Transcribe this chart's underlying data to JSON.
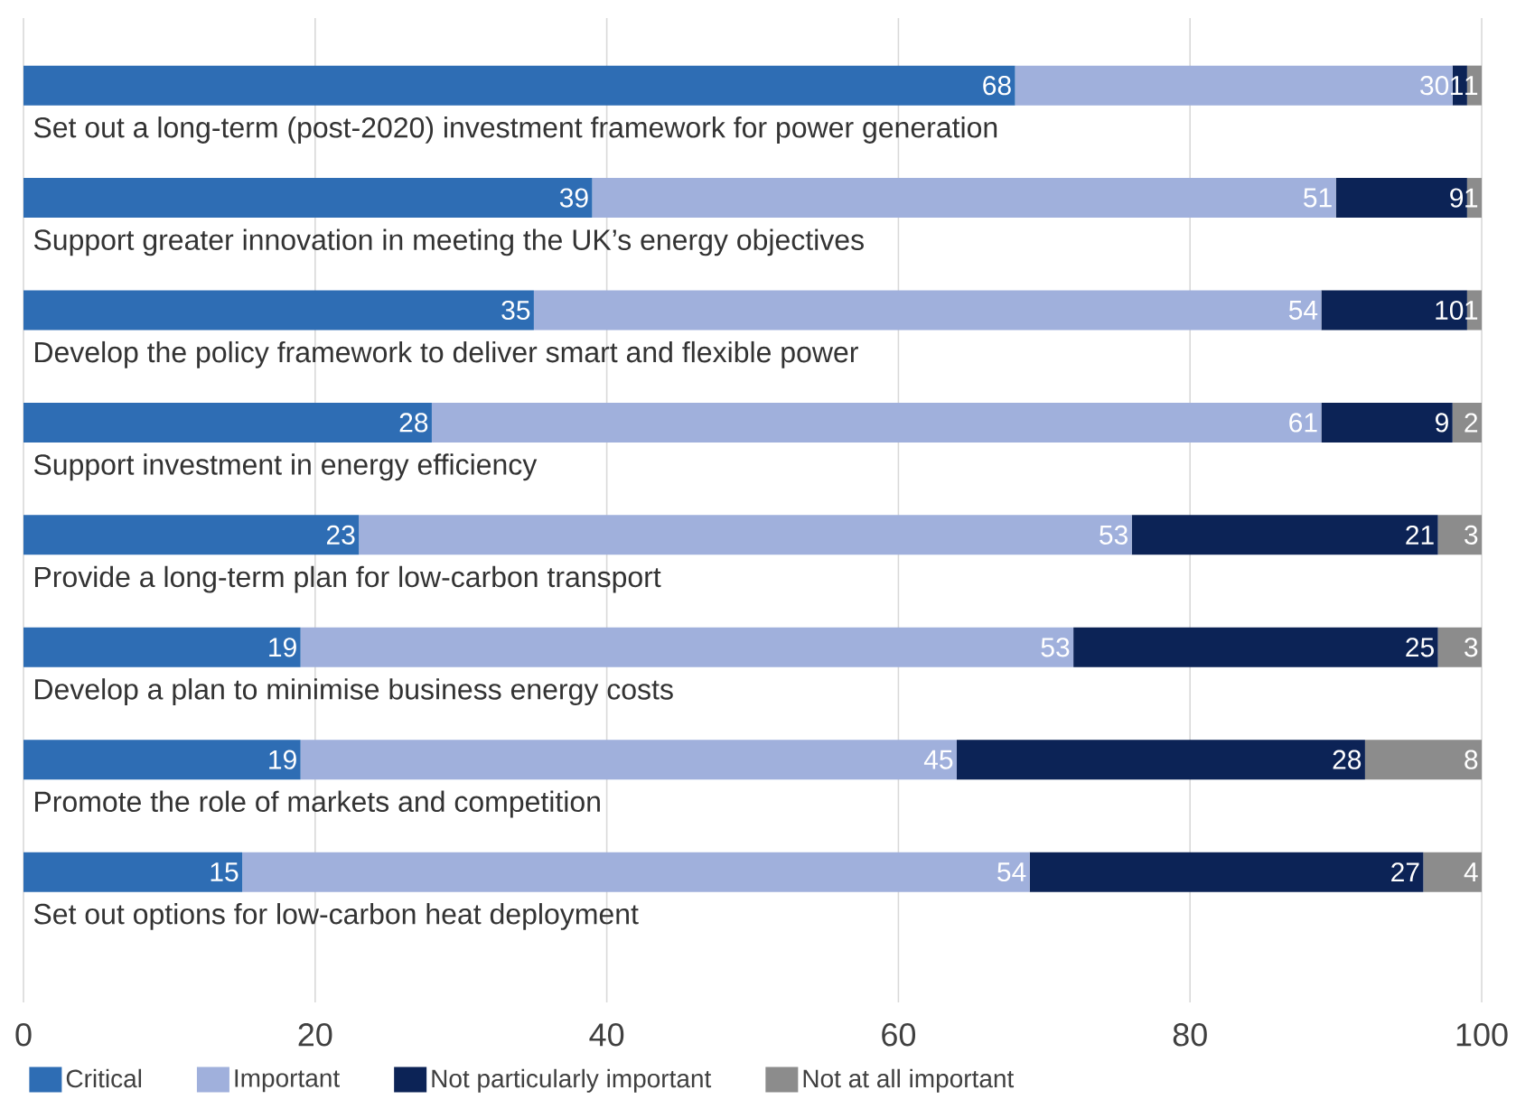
{
  "chart_data": {
    "type": "bar",
    "orientation": "horizontal",
    "stacked": true,
    "data_labels": true,
    "grid": "x",
    "legend": "bottom",
    "categories": [
      "Set out a long-term (post-2020) investment framework for power generation",
      "Support greater innovation in meeting the UK’s energy objectives",
      "Develop the policy framework to deliver smart and flexible power",
      "Support investment in energy efficiency",
      "Provide a long-term plan for low-carbon transport",
      "Develop a plan to minimise business energy costs",
      "Promote the role of markets and competition",
      "Set out options for low-carbon heat deployment"
    ],
    "series": [
      {
        "name": "Critical",
        "color": "#2e6db4",
        "values": [
          68,
          39,
          35,
          28,
          23,
          19,
          19,
          15
        ]
      },
      {
        "name": "Important",
        "color": "#a0b0dc",
        "values": [
          30,
          51,
          54,
          61,
          53,
          53,
          45,
          54
        ]
      },
      {
        "name": "Not particularly important",
        "color": "#0c2356",
        "values": [
          1,
          9,
          10,
          9,
          21,
          25,
          28,
          27
        ]
      },
      {
        "name": "Not at all important",
        "color": "#8c8c8c",
        "values": [
          1,
          1,
          1,
          2,
          3,
          3,
          8,
          4
        ]
      }
    ],
    "xlim": [
      0,
      100
    ],
    "xticks": [
      0,
      20,
      40,
      60,
      80,
      100
    ]
  }
}
